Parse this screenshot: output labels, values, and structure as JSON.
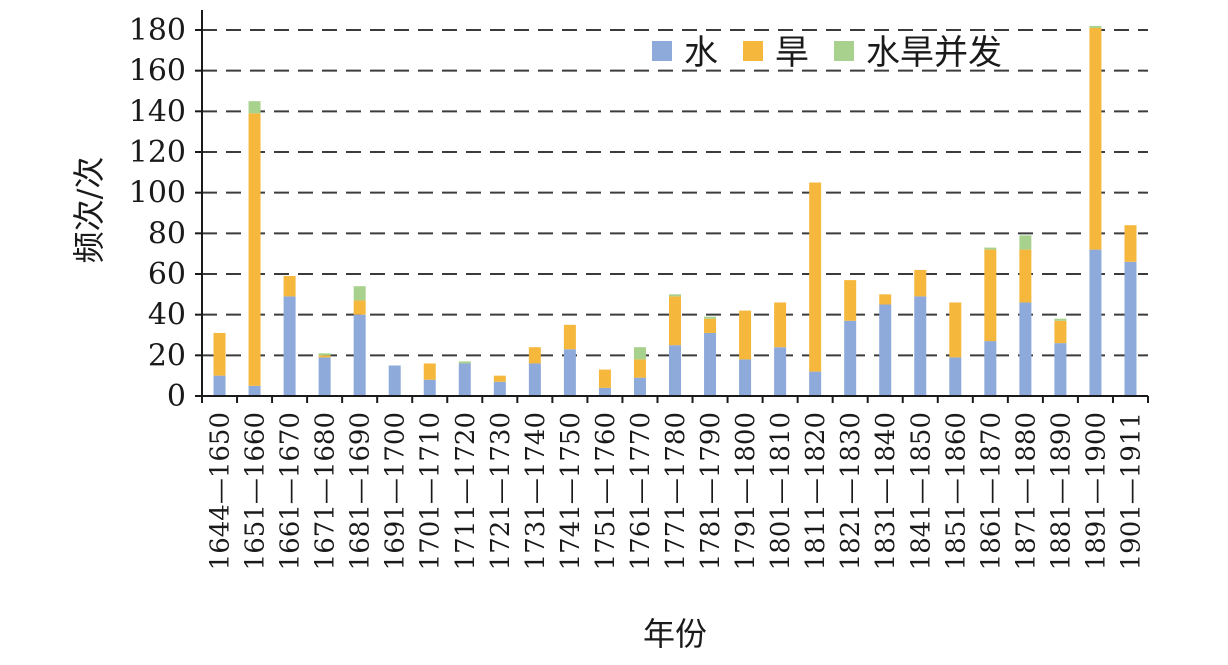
{
  "chart_data": {
    "type": "bar",
    "stacked": true,
    "categories": [
      "1644—1650",
      "1651—1660",
      "1661—1670",
      "1671—1680",
      "1681—1690",
      "1691—1700",
      "1701—1710",
      "1711—1720",
      "1721—1730",
      "1731—1740",
      "1741—1750",
      "1751—1760",
      "1761—1770",
      "1771—1780",
      "1781—1790",
      "1791—1800",
      "1801—1810",
      "1811—1820",
      "1821—1830",
      "1831—1840",
      "1841—1850",
      "1851—1860",
      "1861—1870",
      "1871—1880",
      "1881—1890",
      "1891—1900",
      "1901—1911"
    ],
    "series": [
      {
        "name": "水",
        "color": "#8eaadb",
        "values": [
          10,
          5,
          49,
          19,
          40,
          15,
          8,
          16,
          7,
          16,
          23,
          4,
          9,
          25,
          31,
          18,
          24,
          12,
          37,
          45,
          49,
          19,
          27,
          46,
          26,
          72,
          66
        ]
      },
      {
        "name": "旱",
        "color": "#f5b83d",
        "values": [
          21,
          134,
          10,
          1,
          7,
          0,
          8,
          0,
          3,
          8,
          12,
          9,
          9,
          24,
          7,
          24,
          22,
          93,
          20,
          5,
          13,
          27,
          45,
          26,
          11,
          109,
          18
        ]
      },
      {
        "name": "水旱并发",
        "color": "#a9d18e",
        "values": [
          0,
          6,
          0,
          1,
          7,
          0,
          0,
          1,
          0,
          0,
          0,
          0,
          6,
          1,
          1,
          0,
          0,
          0,
          0,
          0,
          0,
          0,
          1,
          7,
          1,
          1,
          0
        ]
      }
    ],
    "xlabel": "年份",
    "ylabel": "频次/次",
    "ylim": [
      0,
      180
    ],
    "yticks": [
      0,
      20,
      40,
      60,
      80,
      100,
      120,
      140,
      160,
      180
    ],
    "grid": true,
    "legend_position": "top-right"
  }
}
